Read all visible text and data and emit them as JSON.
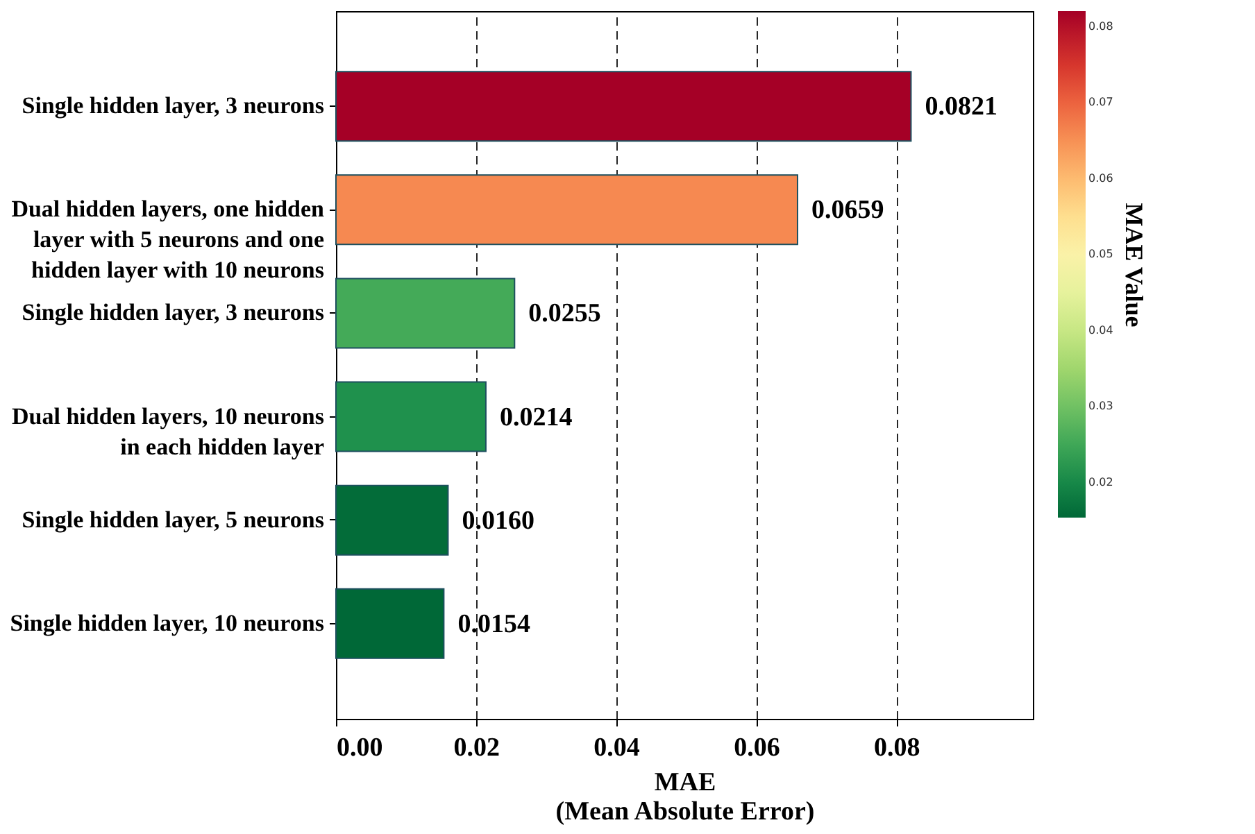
{
  "chart_data": {
    "type": "bar",
    "orientation": "horizontal",
    "categories": [
      "Single hidden layer, 3 neurons",
      "Dual hidden layers, one hidden\nlayer with 5 neurons and one\nhidden layer with 10 neurons",
      "Single hidden layer, 3 neurons",
      "Dual hidden layers, 10 neurons\nin each hidden layer",
      "Single hidden layer, 5 neurons",
      "Single hidden layer, 10 neurons"
    ],
    "values": [
      0.0821,
      0.0659,
      0.0255,
      0.0214,
      0.016,
      0.0154
    ],
    "value_labels": [
      "0.0821",
      "0.0659",
      "0.0255",
      "0.0214",
      "0.0160",
      "0.0154"
    ],
    "xlabel": "MAE\n(Mean Absolute Error)",
    "clabel": "MAE Value",
    "xlim": [
      0,
      0.0995
    ],
    "xticks": [
      {
        "value": 0,
        "label": "0.00"
      },
      {
        "value": 0.02,
        "label": "0.02"
      },
      {
        "value": 0.04,
        "label": "0.04"
      },
      {
        "value": 0.06,
        "label": "0.06"
      },
      {
        "value": 0.08,
        "label": "0.08"
      }
    ],
    "clim": [
      0.0154,
      0.0821
    ],
    "cticks": [
      0.02,
      0.03,
      0.04,
      0.05,
      0.06,
      0.07,
      0.08
    ],
    "grid": "x",
    "line_style": "dashed"
  }
}
